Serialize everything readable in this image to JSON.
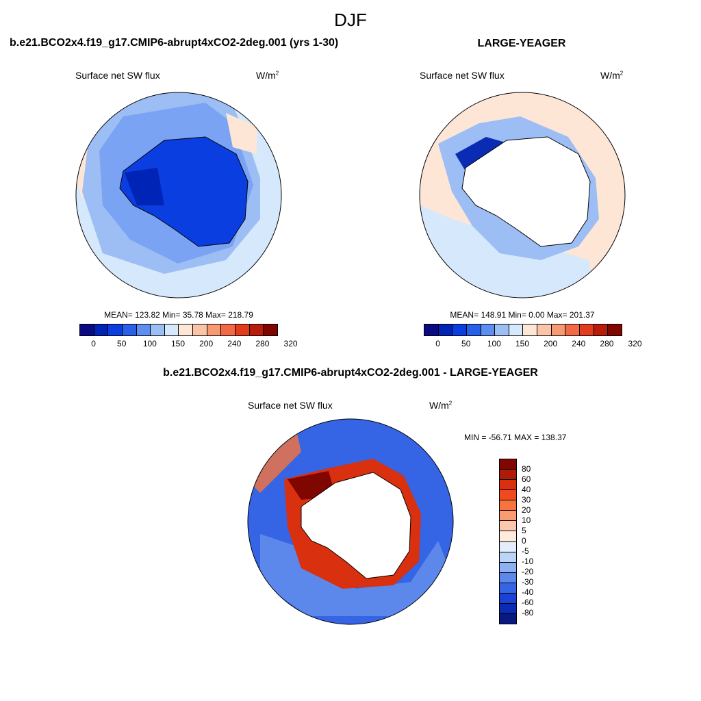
{
  "figure": {
    "season": "DJF"
  },
  "chart_data": [
    {
      "type": "heatmap",
      "title": "b.e21.BCO2x4.f19_g17.CMIP6-abrupt4xCO2-2deg.001 (yrs 1-30)",
      "variable": "Surface net SW flux",
      "units": "W/m",
      "units_exp": "2",
      "stats_label": "MEAN= 123.82  Min=  35.78  Max= 218.79",
      "stats": {
        "mean": 123.82,
        "min": 35.78,
        "max": 218.79
      },
      "colorbar_ticks": [
        "0",
        "50",
        "100",
        "150",
        "200",
        "240",
        "280",
        "320"
      ],
      "colorbar_colors": [
        "#0a0a82",
        "#0024b5",
        "#0a3ee0",
        "#2a5fe8",
        "#5d8ef0",
        "#9dbdf5",
        "#d6e8fb",
        "#fde6d6",
        "#fbc4a6",
        "#f79a74",
        "#f26a45",
        "#e23c1e",
        "#b81d0c",
        "#800600"
      ],
      "region": "Southern Hemisphere polar (Antarctica)"
    },
    {
      "type": "heatmap",
      "title": "LARGE-YEAGER",
      "variable": "Surface net SW flux",
      "units": "W/m",
      "units_exp": "2",
      "stats_label": "MEAN= 148.91  Min=   0.00  Max= 201.37",
      "stats": {
        "mean": 148.91,
        "min": 0.0,
        "max": 201.37
      },
      "colorbar_ticks": [
        "0",
        "50",
        "100",
        "150",
        "200",
        "240",
        "280",
        "320"
      ],
      "colorbar_colors": [
        "#0a0a82",
        "#0024b5",
        "#0a3ee0",
        "#2a5fe8",
        "#5d8ef0",
        "#9dbdf5",
        "#d6e8fb",
        "#fde6d6",
        "#fbc4a6",
        "#f79a74",
        "#f26a45",
        "#e23c1e",
        "#b81d0c",
        "#800600"
      ],
      "region": "Southern Hemisphere polar (Antarctica)"
    },
    {
      "type": "heatmap",
      "title": "b.e21.BCO2x4.f19_g17.CMIP6-abrupt4xCO2-2deg.001 - LARGE-YEAGER",
      "variable": "Surface net SW flux",
      "units": "W/m",
      "units_exp": "2",
      "stats_label": "MIN = -56.71 MAX = 138.37",
      "stats": {
        "min": -56.71,
        "max": 138.37
      },
      "colorbar_ticks": [
        "80",
        "60",
        "40",
        "30",
        "20",
        "10",
        "5",
        "0",
        "-5",
        "-10",
        "-20",
        "-30",
        "-40",
        "-60",
        "-80"
      ],
      "colorbar_colors": [
        "#800600",
        "#b01a08",
        "#d9300f",
        "#f04b1e",
        "#f7743f",
        "#fa9c72",
        "#fcc7aa",
        "#fdebdc",
        "#e2eefb",
        "#bcd4f7",
        "#8cb0f2",
        "#5c88ec",
        "#3564e4",
        "#1a43d6",
        "#0a2bb3",
        "#061a80"
      ],
      "region": "Southern Hemisphere polar (Antarctica)"
    }
  ]
}
